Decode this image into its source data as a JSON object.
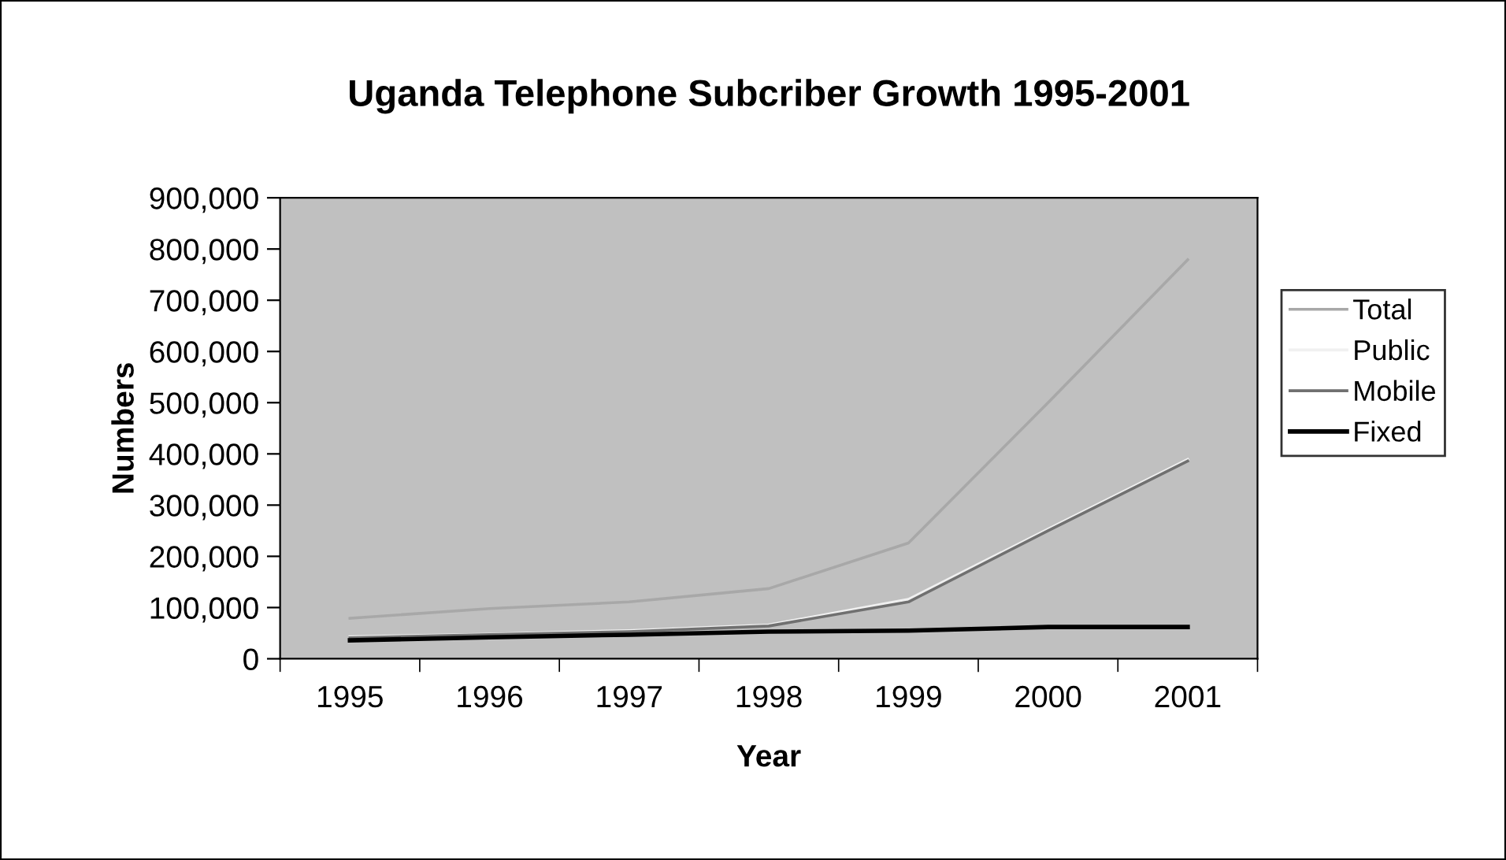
{
  "chart_data": {
    "type": "line",
    "title": "Uganda Telephone Subcriber Growth 1995-2001",
    "xlabel": "Year",
    "ylabel": "Numbers",
    "categories": [
      "1995",
      "1996",
      "1997",
      "1998",
      "1999",
      "2000",
      "2001"
    ],
    "series": [
      {
        "name": "Total",
        "color": "#a8a8a8",
        "values": [
          79000,
          98000,
          111000,
          137000,
          226000,
          500000,
          779000
        ]
      },
      {
        "name": "Public",
        "color": "#f0f0f0",
        "values": [
          43000,
          48000,
          55000,
          66000,
          116000,
          253000,
          389000
        ]
      },
      {
        "name": "Mobile",
        "color": "#707070",
        "values": [
          41000,
          47000,
          53000,
          64000,
          111000,
          250000,
          386000
        ]
      },
      {
        "name": "Fixed",
        "color": "#000000",
        "values": [
          36000,
          42000,
          47000,
          53000,
          55000,
          62000,
          62000
        ]
      }
    ],
    "ylim": [
      0,
      900000
    ],
    "yticks": [
      {
        "value": 0,
        "label": "0"
      },
      {
        "value": 100000,
        "label": "100,000"
      },
      {
        "value": 200000,
        "label": "200,000"
      },
      {
        "value": 300000,
        "label": "300,000"
      },
      {
        "value": 400000,
        "label": "400,000"
      },
      {
        "value": 500000,
        "label": "500,000"
      },
      {
        "value": 600000,
        "label": "600,000"
      },
      {
        "value": 700000,
        "label": "700,000"
      },
      {
        "value": 800000,
        "label": "800,000"
      },
      {
        "value": 900000,
        "label": "900,000"
      }
    ],
    "grid": false,
    "legend": "right",
    "marker": "none",
    "line_style": "solid"
  }
}
